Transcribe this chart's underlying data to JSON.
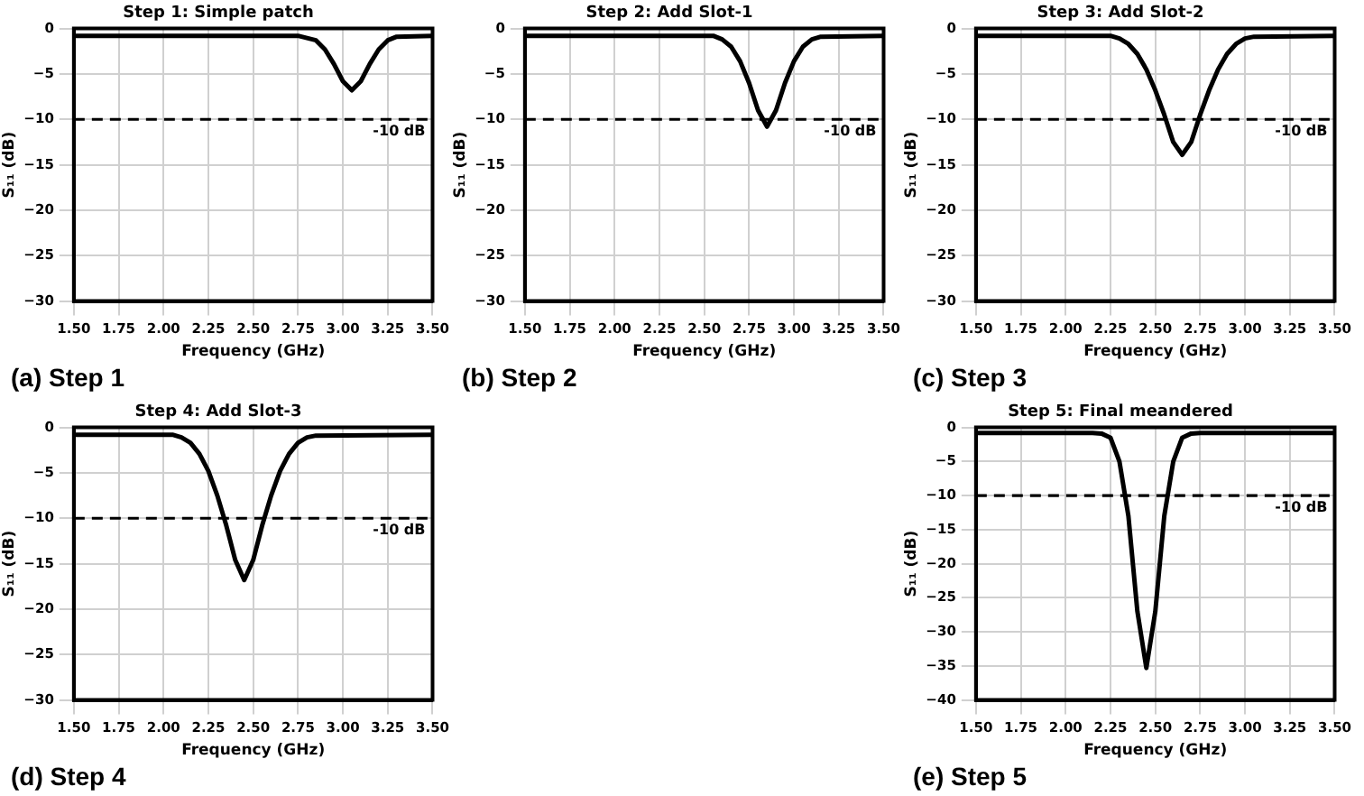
{
  "chart_data": [
    {
      "type": "line",
      "title": "Step 1: Simple patch",
      "xlabel": "Frequency (GHz)",
      "ylabel": "S₁₁ (dB)",
      "annotations": [
        "(a) Step 1"
      ],
      "xlim": [
        1.5,
        3.5
      ],
      "xticks": [
        {
          "value": 1.5,
          "label": "1.50"
        },
        {
          "value": 1.75,
          "label": "1.75"
        },
        {
          "value": 2.0,
          "label": "2.00"
        },
        {
          "value": 2.25,
          "label": "2.25"
        },
        {
          "value": 2.5,
          "label": "2.50"
        },
        {
          "value": 2.75,
          "label": "2.75"
        },
        {
          "value": 3.0,
          "label": "3.00"
        },
        {
          "value": 3.25,
          "label": "3.25"
        },
        {
          "value": 3.5,
          "label": "3.50"
        }
      ],
      "ylim": [
        -30,
        0
      ],
      "yticks": [
        -30,
        -25,
        -20,
        -15,
        -10,
        -5,
        0
      ],
      "grid": true,
      "legend": false,
      "marker": "none",
      "line_style": "solid",
      "ref_lines": [
        {
          "axis": "y",
          "value": -10,
          "label": "-10 dB",
          "color": "#000000",
          "line_style": "dashed"
        }
      ],
      "series": [
        {
          "color": "#000000",
          "x": [
            1.5,
            2.75,
            2.85,
            2.9,
            2.95,
            3.0,
            3.05,
            3.1,
            3.15,
            3.2,
            3.25,
            3.3,
            3.5
          ],
          "values": [
            -0.8,
            -0.8,
            -1.3,
            -2.3,
            -3.9,
            -5.8,
            -6.8,
            -5.8,
            -3.9,
            -2.3,
            -1.3,
            -0.9,
            -0.8
          ]
        }
      ]
    },
    {
      "type": "line",
      "title": "Step 2: Add Slot-1",
      "xlabel": "Frequency (GHz)",
      "ylabel": "S₁₁ (dB)",
      "annotations": [
        "(b) Step 2"
      ],
      "xlim": [
        1.5,
        3.5
      ],
      "xticks": [
        {
          "value": 1.5,
          "label": "1.50"
        },
        {
          "value": 1.75,
          "label": "1.75"
        },
        {
          "value": 2.0,
          "label": "2.00"
        },
        {
          "value": 2.25,
          "label": "2.25"
        },
        {
          "value": 2.5,
          "label": "2.50"
        },
        {
          "value": 2.75,
          "label": "2.75"
        },
        {
          "value": 3.0,
          "label": "3.00"
        },
        {
          "value": 3.25,
          "label": "3.25"
        },
        {
          "value": 3.5,
          "label": "3.50"
        }
      ],
      "ylim": [
        -30,
        0
      ],
      "yticks": [
        -30,
        -25,
        -20,
        -15,
        -10,
        -5,
        0
      ],
      "grid": true,
      "legend": false,
      "marker": "none",
      "line_style": "solid",
      "ref_lines": [
        {
          "axis": "y",
          "value": -10,
          "label": "-10 dB",
          "color": "#000000",
          "line_style": "dashed"
        }
      ],
      "series": [
        {
          "color": "#000000",
          "x": [
            1.5,
            2.55,
            2.6,
            2.65,
            2.7,
            2.75,
            2.8,
            2.85,
            2.9,
            2.95,
            3.0,
            3.05,
            3.1,
            3.15,
            3.5
          ],
          "values": [
            -0.8,
            -0.8,
            -1.2,
            -2.0,
            -3.6,
            -6.0,
            -9.0,
            -10.8,
            -9.0,
            -6.0,
            -3.6,
            -2.0,
            -1.2,
            -0.9,
            -0.8
          ]
        }
      ]
    },
    {
      "type": "line",
      "title": "Step 3: Add Slot-2",
      "xlabel": "Frequency (GHz)",
      "ylabel": "S₁₁ (dB)",
      "annotations": [
        "(c) Step 3"
      ],
      "xlim": [
        1.5,
        3.5
      ],
      "xticks": [
        {
          "value": 1.5,
          "label": "1.50"
        },
        {
          "value": 1.75,
          "label": "1.75"
        },
        {
          "value": 2.0,
          "label": "2.00"
        },
        {
          "value": 2.25,
          "label": "2.25"
        },
        {
          "value": 2.5,
          "label": "2.50"
        },
        {
          "value": 2.75,
          "label": "2.75"
        },
        {
          "value": 3.0,
          "label": "3.00"
        },
        {
          "value": 3.25,
          "label": "3.25"
        },
        {
          "value": 3.5,
          "label": "3.50"
        }
      ],
      "ylim": [
        -30,
        0
      ],
      "yticks": [
        -30,
        -25,
        -20,
        -15,
        -10,
        -5,
        0
      ],
      "grid": true,
      "legend": false,
      "marker": "none",
      "line_style": "solid",
      "ref_lines": [
        {
          "axis": "y",
          "value": -10,
          "label": "-10 dB",
          "color": "#000000",
          "line_style": "dashed"
        }
      ],
      "series": [
        {
          "color": "#000000",
          "x": [
            1.5,
            2.25,
            2.3,
            2.35,
            2.4,
            2.45,
            2.5,
            2.55,
            2.6,
            2.65,
            2.7,
            2.75,
            2.8,
            2.85,
            2.9,
            2.95,
            3.0,
            3.05,
            3.5
          ],
          "values": [
            -0.8,
            -0.8,
            -1.1,
            -1.7,
            -2.8,
            -4.5,
            -6.8,
            -9.5,
            -12.5,
            -13.9,
            -12.5,
            -9.5,
            -6.8,
            -4.5,
            -2.8,
            -1.7,
            -1.1,
            -0.9,
            -0.8
          ]
        }
      ]
    },
    {
      "type": "line",
      "title": "Step 4: Add Slot-3",
      "xlabel": "Frequency (GHz)",
      "ylabel": "S₁₁ (dB)",
      "annotations": [
        "(d) Step 4"
      ],
      "xlim": [
        1.5,
        3.5
      ],
      "xticks": [
        {
          "value": 1.5,
          "label": "1.50"
        },
        {
          "value": 1.75,
          "label": "1.75"
        },
        {
          "value": 2.0,
          "label": "2.00"
        },
        {
          "value": 2.25,
          "label": "2.25"
        },
        {
          "value": 2.5,
          "label": "2.50"
        },
        {
          "value": 2.75,
          "label": "2.75"
        },
        {
          "value": 3.0,
          "label": "3.00"
        },
        {
          "value": 3.25,
          "label": "3.25"
        },
        {
          "value": 3.5,
          "label": "3.50"
        }
      ],
      "ylim": [
        -30,
        0
      ],
      "yticks": [
        -30,
        -25,
        -20,
        -15,
        -10,
        -5,
        0
      ],
      "grid": true,
      "legend": false,
      "marker": "none",
      "line_style": "solid",
      "ref_lines": [
        {
          "axis": "y",
          "value": -10,
          "label": "-10 dB",
          "color": "#000000",
          "line_style": "dashed"
        }
      ],
      "series": [
        {
          "color": "#000000",
          "x": [
            1.5,
            2.05,
            2.1,
            2.15,
            2.2,
            2.25,
            2.3,
            2.35,
            2.4,
            2.45,
            2.5,
            2.55,
            2.6,
            2.65,
            2.7,
            2.75,
            2.8,
            2.85,
            3.5
          ],
          "values": [
            -0.8,
            -0.8,
            -1.1,
            -1.7,
            -2.9,
            -4.8,
            -7.5,
            -10.8,
            -14.6,
            -16.8,
            -14.6,
            -10.8,
            -7.5,
            -4.8,
            -2.9,
            -1.7,
            -1.1,
            -0.9,
            -0.8
          ]
        }
      ]
    },
    {
      "type": "line",
      "title": "Step 5: Final meandered",
      "xlabel": "Frequency (GHz)",
      "ylabel": "S₁₁ (dB)",
      "annotations": [
        "(e) Step 5"
      ],
      "xlim": [
        1.5,
        3.5
      ],
      "xticks": [
        {
          "value": 1.5,
          "label": "1.50"
        },
        {
          "value": 1.75,
          "label": "1.75"
        },
        {
          "value": 2.0,
          "label": "2.00"
        },
        {
          "value": 2.25,
          "label": "2.25"
        },
        {
          "value": 2.5,
          "label": "2.50"
        },
        {
          "value": 2.75,
          "label": "2.75"
        },
        {
          "value": 3.0,
          "label": "3.00"
        },
        {
          "value": 3.25,
          "label": "3.25"
        },
        {
          "value": 3.5,
          "label": "3.50"
        }
      ],
      "ylim": [
        -40,
        0
      ],
      "yticks": [
        -40,
        -35,
        -30,
        -25,
        -20,
        -15,
        -10,
        -5,
        0
      ],
      "grid": true,
      "legend": false,
      "marker": "none",
      "line_style": "solid",
      "ref_lines": [
        {
          "axis": "y",
          "value": -10,
          "label": "-10 dB",
          "color": "#000000",
          "line_style": "dashed"
        }
      ],
      "series": [
        {
          "color": "#000000",
          "x": [
            1.5,
            2.15,
            2.2,
            2.25,
            2.3,
            2.35,
            2.4,
            2.45,
            2.5,
            2.55,
            2.6,
            2.65,
            2.7,
            2.75,
            3.5
          ],
          "values": [
            -0.8,
            -0.8,
            -0.9,
            -1.5,
            -5.0,
            -13.0,
            -27.0,
            -35.3,
            -27.0,
            -13.0,
            -5.0,
            -1.5,
            -0.9,
            -0.8,
            -0.8
          ]
        }
      ]
    }
  ]
}
